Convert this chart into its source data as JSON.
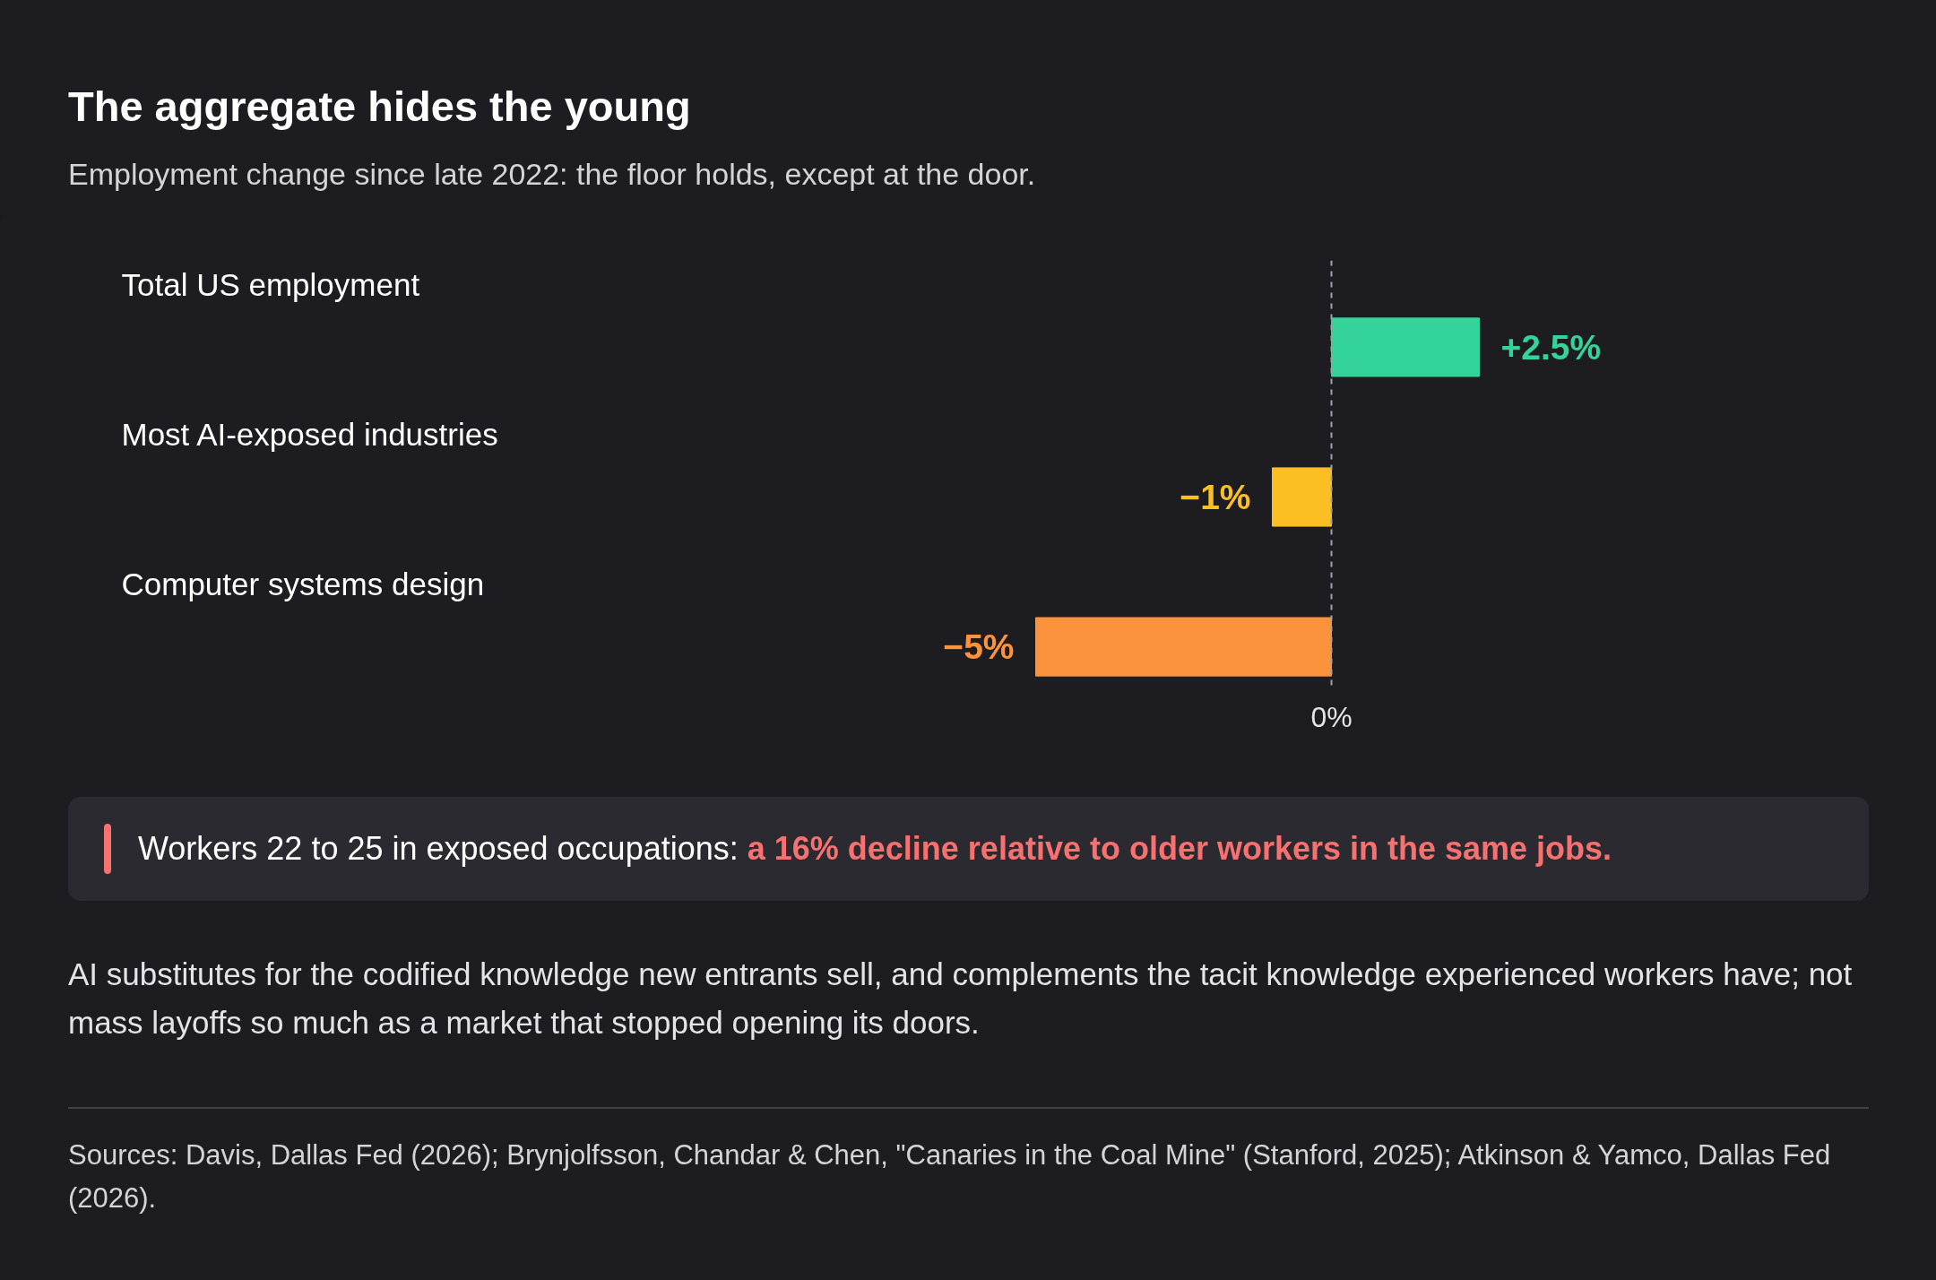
{
  "chart_data": {
    "type": "bar",
    "orientation": "horizontal",
    "title": "The aggregate hides the young",
    "subtitle": "Employment change since late 2022: the floor holds, except at the door.",
    "categories": [
      "Total US employment",
      "Most AI-exposed industries",
      "Computer systems design"
    ],
    "values": [
      2.5,
      -1,
      -5
    ],
    "colors": [
      "#34d399",
      "#fbbf24",
      "#fb923c"
    ],
    "value_labels": [
      "+2.5%",
      "−1%",
      "−5%"
    ],
    "ref_lines": [
      {
        "axis": "x",
        "value": 0,
        "label": null,
        "color": "#a1a1aa",
        "line_style": "dashed"
      }
    ],
    "annotations": [
      "Workers 22 to 25 in exposed occupations:",
      "a 16% decline relative to older workers in the same jobs.",
      "AI substitutes for the codified knowledge new entrants sell, and complements the tacit knowledge experienced workers have; not mass layoffs so much as a market that stopped opening its doors.",
      "Sources: Davis, Dallas Fed (2026); Brynjolfsson, Chandar & Chen, \"Canaries in the Coal Mine\" (Stanford, 2025); Atkinson & Yamco, Dallas Fed (2026).",
      "0%"
    ]
  }
}
